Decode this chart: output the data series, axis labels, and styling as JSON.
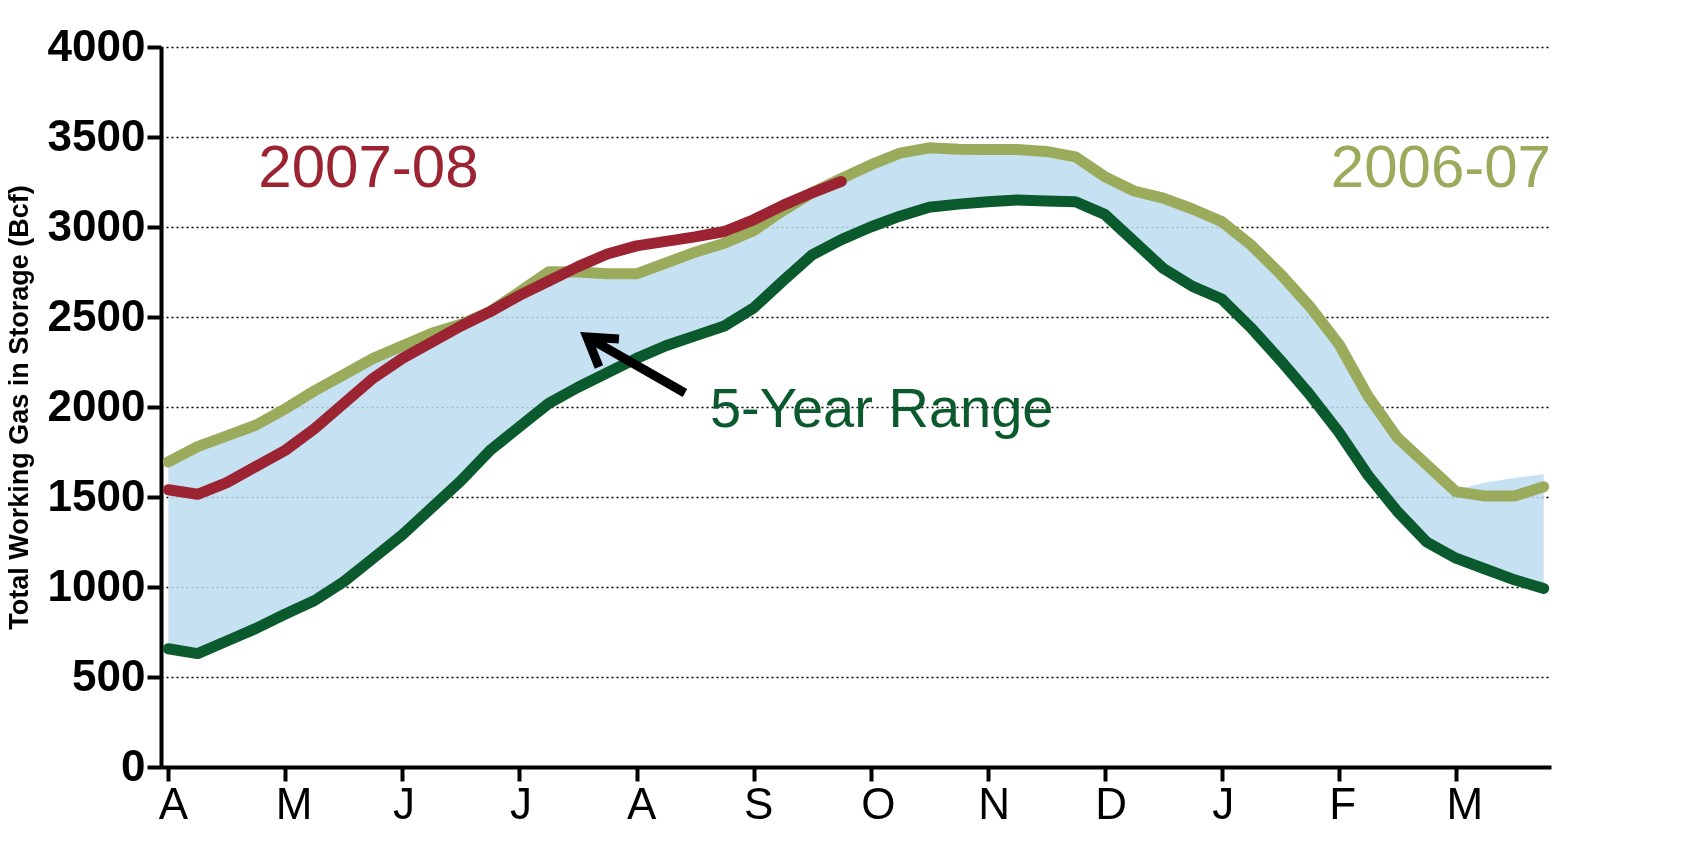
{
  "chart_data": {
    "type": "line",
    "ylabel": "Total Working Gas in Storage  (Bcf)",
    "categories": [
      "A",
      null,
      null,
      null,
      "M",
      null,
      null,
      null,
      "J",
      null,
      null,
      null,
      "J",
      null,
      null,
      null,
      "A",
      null,
      null,
      null,
      "S",
      null,
      null,
      null,
      "O",
      null,
      null,
      null,
      "N",
      null,
      null,
      null,
      "D",
      null,
      null,
      null,
      "J",
      null,
      null,
      null,
      "F",
      null,
      null,
      null,
      "M",
      null,
      null,
      null
    ],
    "ylim": [
      0,
      4000
    ],
    "yticks": [
      0,
      500,
      1000,
      1500,
      2000,
      2500,
      3000,
      3500,
      4000
    ],
    "grid": "y",
    "legend": false,
    "series": [
      {
        "color": "#0b5a2e",
        "values": [
          657,
          630,
          700,
          770,
          850,
          925,
          1030,
          1160,
          1290,
          1440,
          1590,
          1760,
          1890,
          2020,
          2110,
          2190,
          2270,
          2340,
          2395,
          2450,
          2550,
          2700,
          2845,
          2930,
          3000,
          3060,
          3110,
          3127,
          3140,
          3150,
          3145,
          3140,
          3070,
          2920,
          2770,
          2670,
          2600,
          2440,
          2260,
          2070,
          1860,
          1620,
          1420,
          1250,
          1160,
          1100,
          1040,
          992
        ],
        "lower": [
          657,
          630,
          700,
          770,
          850,
          925,
          1030,
          1160,
          1290,
          1440,
          1590,
          1760,
          1890,
          2020,
          2110,
          2190,
          2270,
          2340,
          2395,
          2450,
          2550,
          2700,
          2845,
          2930,
          3000,
          3060,
          3110,
          3127,
          3140,
          3150,
          3145,
          3140,
          3070,
          2920,
          2770,
          2670,
          2600,
          2440,
          2260,
          2070,
          1860,
          1620,
          1420,
          1250,
          1160,
          1100,
          1040,
          992
        ],
        "upper": [
          1695,
          1780,
          1840,
          1900,
          1990,
          2090,
          2180,
          2270,
          2340,
          2410,
          2460,
          2530,
          2640,
          2751,
          2750,
          2740,
          2740,
          2800,
          2860,
          2910,
          2980,
          3090,
          3190,
          3270,
          3345,
          3410,
          3440,
          3432,
          3430,
          3431,
          3420,
          3390,
          3280,
          3200,
          3160,
          3100,
          3030,
          2900,
          2740,
          2560,
          2350,
          2060,
          1830,
          1680,
          1540,
          1580,
          1605,
          1626
        ]
      },
      {
        "name": "2006-07",
        "color": "#9aab5c",
        "values": [
          1695,
          1780,
          1840,
          1900,
          1990,
          2090,
          2180,
          2270,
          2340,
          2410,
          2460,
          2530,
          2640,
          2751,
          2750,
          2740,
          2740,
          2800,
          2860,
          2910,
          2980,
          3090,
          3190,
          3270,
          3345,
          3410,
          3440,
          3432,
          3430,
          3431,
          3420,
          3390,
          3280,
          3200,
          3160,
          3100,
          3030,
          2900,
          2740,
          2560,
          2350,
          2060,
          1830,
          1680,
          1530,
          1505,
          1505,
          1557
        ]
      },
      {
        "name": "2007-08",
        "color": "#9b2332",
        "values": [
          1540,
          1515,
          1580,
          1670,
          1760,
          1880,
          2020,
          2160,
          2270,
          2360,
          2450,
          2530,
          2620,
          2700,
          2780,
          2850,
          2895,
          2920,
          2945,
          2975,
          3040,
          3120,
          3190,
          3253,
          null,
          null,
          null,
          null,
          null,
          null,
          null,
          null,
          null,
          null,
          null,
          null,
          null,
          null,
          null,
          null,
          null,
          null,
          null,
          null,
          null,
          null,
          null,
          null
        ]
      }
    ],
    "annotations": [
      "5-Year Range"
    ]
  }
}
